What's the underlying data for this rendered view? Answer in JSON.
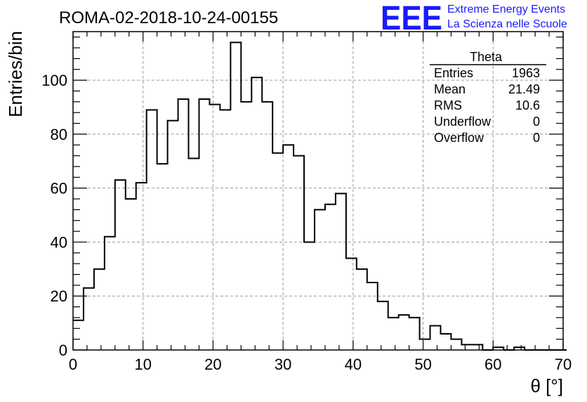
{
  "chart_data": {
    "type": "bar",
    "style": "step-histogram",
    "title": "ROMA-02-2018-10-24-00155",
    "xlabel": "θ [°]",
    "ylabel": "Entries/bin",
    "xlim": [
      0,
      70
    ],
    "ylim": [
      0,
      118
    ],
    "bin_width": 1.5,
    "x_start": 0,
    "x_ticks": [
      "0",
      "10",
      "20",
      "30",
      "40",
      "50",
      "60",
      "70"
    ],
    "y_ticks": [
      "0",
      "20",
      "40",
      "60",
      "80",
      "100"
    ],
    "grid": true,
    "line_color": "#000000",
    "values": [
      11,
      23,
      30,
      42,
      63,
      56,
      62,
      89,
      69,
      85,
      93,
      71,
      93,
      91,
      89,
      114,
      92,
      101,
      92,
      73,
      76,
      72,
      40,
      52,
      54,
      58,
      34,
      30,
      25,
      18,
      12,
      13,
      12,
      4,
      9,
      6,
      4,
      2,
      2,
      0,
      1,
      0,
      1,
      0,
      0,
      0,
      0
    ]
  },
  "stats_box": {
    "title": "Theta",
    "rows": [
      {
        "label": "Entries",
        "value": "1963"
      },
      {
        "label": "Mean",
        "value": "21.49"
      },
      {
        "label": "RMS",
        "value": "10.6"
      },
      {
        "label": "Underflow",
        "value": "0"
      },
      {
        "label": "Overflow",
        "value": "0"
      }
    ]
  },
  "logo": {
    "mark": "EEE",
    "line1": "Extreme Energy Events",
    "line2": "La Scienza nelle Scuole",
    "color": "#1a1aff"
  }
}
